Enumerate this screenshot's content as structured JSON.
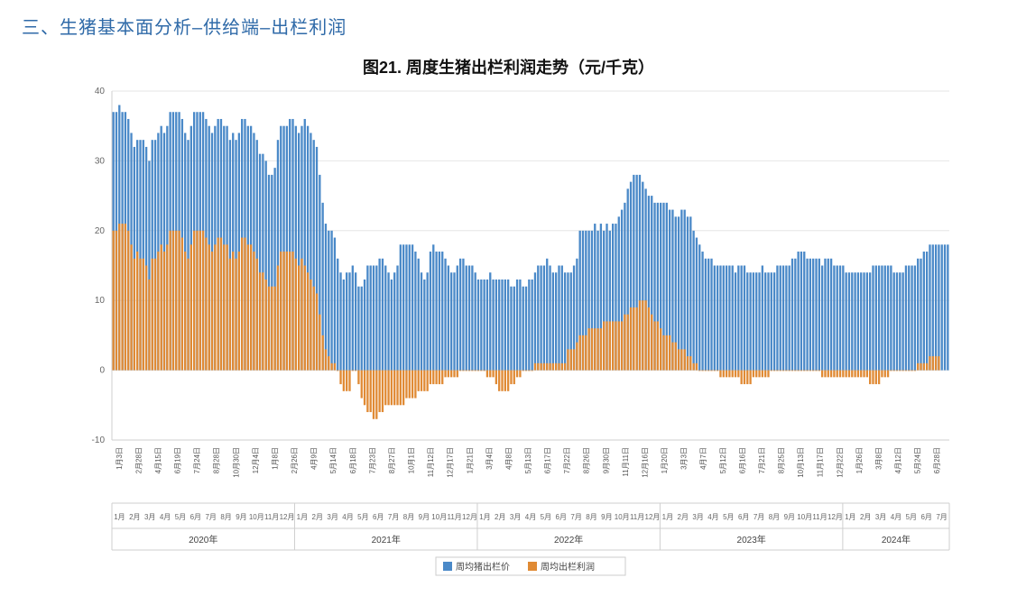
{
  "section_header": "三、生猪基本面分析–供给端–出栏利润",
  "chart": {
    "type": "bar",
    "title": "图21. 周度生猪出栏利润走势（元/千克）",
    "title_fontsize": 18,
    "ylim": [
      -10,
      40
    ],
    "ytick_step": 10,
    "yticks": [
      -10,
      0,
      10,
      20,
      30,
      40
    ],
    "background_color": "#ffffff",
    "grid_color": "#e6e6e6",
    "axis_color": "#cfcfcf",
    "bar_width": 0.7,
    "label_fontsize": 10,
    "legend": {
      "items": [
        {
          "label": "周均猪出栏价",
          "color": "#4a89c8"
        },
        {
          "label": "周均出栏利润",
          "color": "#e08a34"
        }
      ],
      "stroke": "#cccccc",
      "bg": "#ffffff"
    },
    "x_date_labels": [
      "1月3日",
      "2月28日",
      "4月15日",
      "6月19日",
      "7月24日",
      "8月28日",
      "10月30日",
      "12月4日",
      "1月8日",
      "2月26日",
      "4月9日",
      "5月14日",
      "6月18日",
      "7月23日",
      "8月27日",
      "10月1日",
      "11月12日",
      "12月17日",
      "1月21日",
      "3月4日",
      "4月8日",
      "5月13日",
      "6月17日",
      "7月22日",
      "8月26日",
      "9月30日",
      "11月11日",
      "12月16日",
      "1月20日",
      "3月3日",
      "4月7日",
      "5月12日",
      "6月16日",
      "7月21日",
      "8月25日",
      "10月13日",
      "11月17日",
      "12月22日",
      "1月26日",
      "3月8日",
      "4月12日",
      "5月24日",
      "6月28日"
    ],
    "years": [
      {
        "label": "2020年",
        "months": [
          "1月",
          "2月",
          "3月",
          "4月",
          "5月",
          "6月",
          "7月",
          "8月",
          "9月",
          "10月",
          "11月",
          "12月"
        ]
      },
      {
        "label": "2021年",
        "months": [
          "1月",
          "2月",
          "3月",
          "4月",
          "5月",
          "6月",
          "7月",
          "8月",
          "9月",
          "10月",
          "11月",
          "12月"
        ]
      },
      {
        "label": "2022年",
        "months": [
          "1月",
          "2月",
          "3月",
          "4月",
          "5月",
          "6月",
          "7月",
          "8月",
          "9月",
          "10月",
          "11月",
          "12月"
        ]
      },
      {
        "label": "2023年",
        "months": [
          "1月",
          "2月",
          "3月",
          "4月",
          "5月",
          "6月",
          "7月",
          "8月",
          "9月",
          "10月",
          "11月",
          "12月"
        ]
      },
      {
        "label": "2024年",
        "months": [
          "1月",
          "2月",
          "3月",
          "4月",
          "5月",
          "6月",
          "7月"
        ]
      }
    ],
    "series": {
      "price": {
        "color": "#4a89c8",
        "values": [
          37,
          37,
          38,
          37,
          37,
          36,
          34,
          32,
          33,
          33,
          33,
          32,
          30,
          33,
          33,
          34,
          35,
          34,
          35,
          37,
          37,
          37,
          37,
          36,
          34,
          33,
          35,
          37,
          37,
          37,
          37,
          36,
          35,
          34,
          35,
          36,
          36,
          35,
          35,
          33,
          34,
          33,
          34,
          36,
          36,
          35,
          35,
          34,
          33,
          31,
          31,
          30,
          28,
          28,
          29,
          33,
          35,
          35,
          35,
          36,
          36,
          35,
          34,
          35,
          36,
          35,
          34,
          33,
          32,
          28,
          24,
          21,
          20,
          20,
          19,
          16,
          14,
          13,
          14,
          14,
          15,
          14,
          12,
          12,
          13,
          15,
          15,
          15,
          15,
          16,
          16,
          15,
          14,
          13,
          14,
          15,
          18,
          18,
          18,
          18,
          18,
          17,
          16,
          14,
          13,
          14,
          17,
          18,
          17,
          17,
          17,
          16,
          15,
          14,
          14,
          15,
          16,
          16,
          15,
          15,
          15,
          14,
          13,
          13,
          13,
          13,
          14,
          13,
          13,
          13,
          13,
          13,
          13,
          12,
          12,
          13,
          13,
          12,
          12,
          13,
          13,
          14,
          15,
          15,
          15,
          16,
          15,
          14,
          14,
          15,
          15,
          14,
          14,
          14,
          15,
          16,
          20,
          20,
          20,
          20,
          20,
          21,
          20,
          21,
          20,
          21,
          20,
          21,
          21,
          22,
          23,
          24,
          26,
          27,
          28,
          28,
          28,
          27,
          26,
          25,
          25,
          24,
          24,
          24,
          24,
          24,
          23,
          23,
          22,
          22,
          23,
          23,
          22,
          22,
          20,
          19,
          18,
          17,
          16,
          16,
          16,
          15,
          15,
          15,
          15,
          15,
          15,
          15,
          14,
          15,
          15,
          15,
          14,
          14,
          14,
          14,
          14,
          15,
          14,
          14,
          14,
          14,
          15,
          15,
          15,
          15,
          15,
          16,
          16,
          17,
          17,
          17,
          16,
          16,
          16,
          16,
          16,
          15,
          16,
          16,
          16,
          15,
          15,
          15,
          15,
          14,
          14,
          14,
          14,
          14,
          14,
          14,
          14,
          14,
          15,
          15,
          15,
          15,
          15,
          15,
          15,
          14,
          14,
          14,
          14,
          15,
          15,
          15,
          15,
          16,
          16,
          17,
          17,
          18,
          18,
          18,
          18,
          18,
          18,
          18
        ]
      },
      "profit": {
        "color": "#e08a34",
        "values": [
          20,
          20,
          21,
          21,
          21,
          20,
          18,
          16,
          17,
          16,
          16,
          15,
          13,
          16,
          16,
          17,
          18,
          17,
          18,
          20,
          20,
          20,
          20,
          19,
          17,
          16,
          18,
          20,
          20,
          20,
          20,
          19,
          18,
          17,
          18,
          19,
          19,
          18,
          18,
          16,
          17,
          16,
          17,
          19,
          19,
          18,
          18,
          17,
          16,
          14,
          14,
          13,
          12,
          12,
          12,
          15,
          17,
          17,
          17,
          17,
          17,
          16,
          15,
          16,
          15,
          14,
          13,
          12,
          11,
          8,
          5,
          3,
          2,
          1,
          1,
          0,
          -2,
          -3,
          -3,
          -3,
          0,
          0,
          -2,
          -4,
          -5,
          -6,
          -6,
          -7,
          -7,
          -6,
          -6,
          -5,
          -5,
          -5,
          -5,
          -5,
          -5,
          -5,
          -4,
          -4,
          -4,
          -4,
          -3,
          -3,
          -3,
          -3,
          -2,
          -2,
          -2,
          -2,
          -2,
          -1,
          -1,
          -1,
          -1,
          -1,
          0,
          0,
          0,
          0,
          0,
          0,
          0,
          0,
          0,
          -1,
          -1,
          -1,
          -2,
          -3,
          -3,
          -3,
          -3,
          -2,
          -2,
          -1,
          -1,
          0,
          0,
          0,
          0,
          1,
          1,
          1,
          1,
          1,
          1,
          1,
          1,
          1,
          1,
          1,
          3,
          3,
          3,
          4,
          5,
          5,
          5,
          6,
          6,
          6,
          6,
          6,
          7,
          7,
          7,
          7,
          7,
          7,
          7,
          8,
          8,
          9,
          9,
          9,
          10,
          10,
          10,
          9,
          8,
          7,
          7,
          6,
          5,
          5,
          5,
          4,
          4,
          3,
          3,
          3,
          2,
          2,
          1,
          1,
          0,
          0,
          0,
          0,
          0,
          0,
          0,
          -1,
          -1,
          -1,
          -1,
          -1,
          -1,
          -1,
          -2,
          -2,
          -2,
          -2,
          -1,
          -1,
          -1,
          -1,
          -1,
          -1,
          0,
          0,
          0,
          0,
          0,
          0,
          0,
          0,
          0,
          0,
          0,
          0,
          0,
          0,
          0,
          0,
          0,
          -1,
          -1,
          -1,
          -1,
          -1,
          -1,
          -1,
          -1,
          -1,
          -1,
          -1,
          -1,
          -1,
          -1,
          -1,
          -1,
          -2,
          -2,
          -2,
          -2,
          -1,
          -1,
          -1,
          0,
          0,
          0,
          0,
          0,
          0,
          0,
          0,
          0,
          1,
          1,
          1,
          1,
          2,
          2,
          2,
          2
        ]
      }
    }
  }
}
